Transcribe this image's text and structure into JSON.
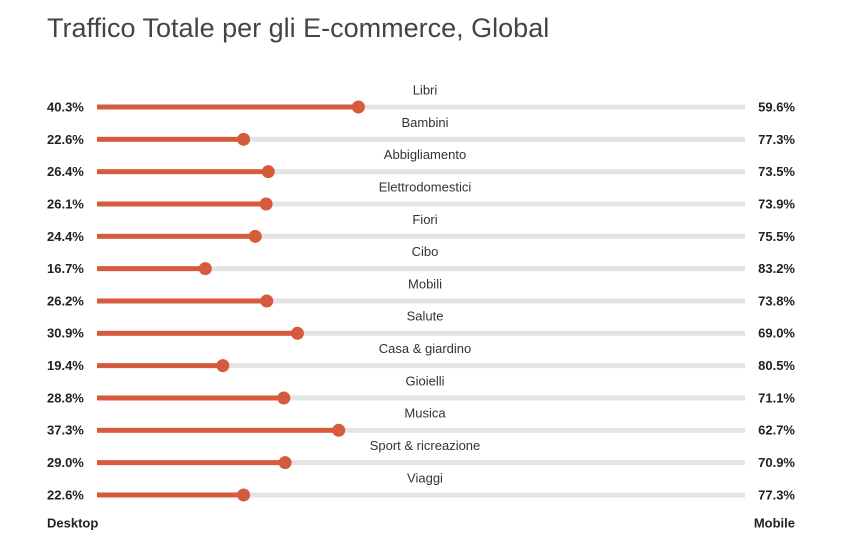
{
  "chart_data": {
    "type": "bar",
    "title": "Traffico Totale per gli E-commerce, Global",
    "categories": [
      "Libri",
      "Bambini",
      "Abbigliamento",
      "Elettrodomestici",
      "Fiori",
      "Cibo",
      "Mobili",
      "Salute",
      "Casa & giardino",
      "Gioielli",
      "Musica",
      "Sport & ricreazione",
      "Viaggi"
    ],
    "series": [
      {
        "name": "Desktop",
        "color": "#d65a3c",
        "values": [
          40.3,
          22.6,
          26.4,
          26.1,
          24.4,
          16.7,
          26.2,
          30.9,
          19.4,
          28.8,
          37.3,
          29.0,
          22.6
        ],
        "value_labels": [
          "40.3%",
          "22.6%",
          "26.4%",
          "26.1%",
          "24.4%",
          "16.7%",
          "26.2%",
          "30.9%",
          "19.4%",
          "28.8%",
          "37.3%",
          "29.0%",
          "22.6%"
        ]
      },
      {
        "name": "Mobile",
        "color": "#e4e4e4",
        "values": [
          59.6,
          77.3,
          73.5,
          73.9,
          75.5,
          83.2,
          73.8,
          69.0,
          80.5,
          71.1,
          62.7,
          70.9,
          77.3
        ],
        "value_labels": [
          "59.6%",
          "77.3%",
          "73.5%",
          "73.9%",
          "75.5%",
          "83.2%",
          "73.8%",
          "69.0%",
          "80.5%",
          "71.1%",
          "62.7%",
          "70.9%",
          "77.3%"
        ]
      }
    ]
  }
}
